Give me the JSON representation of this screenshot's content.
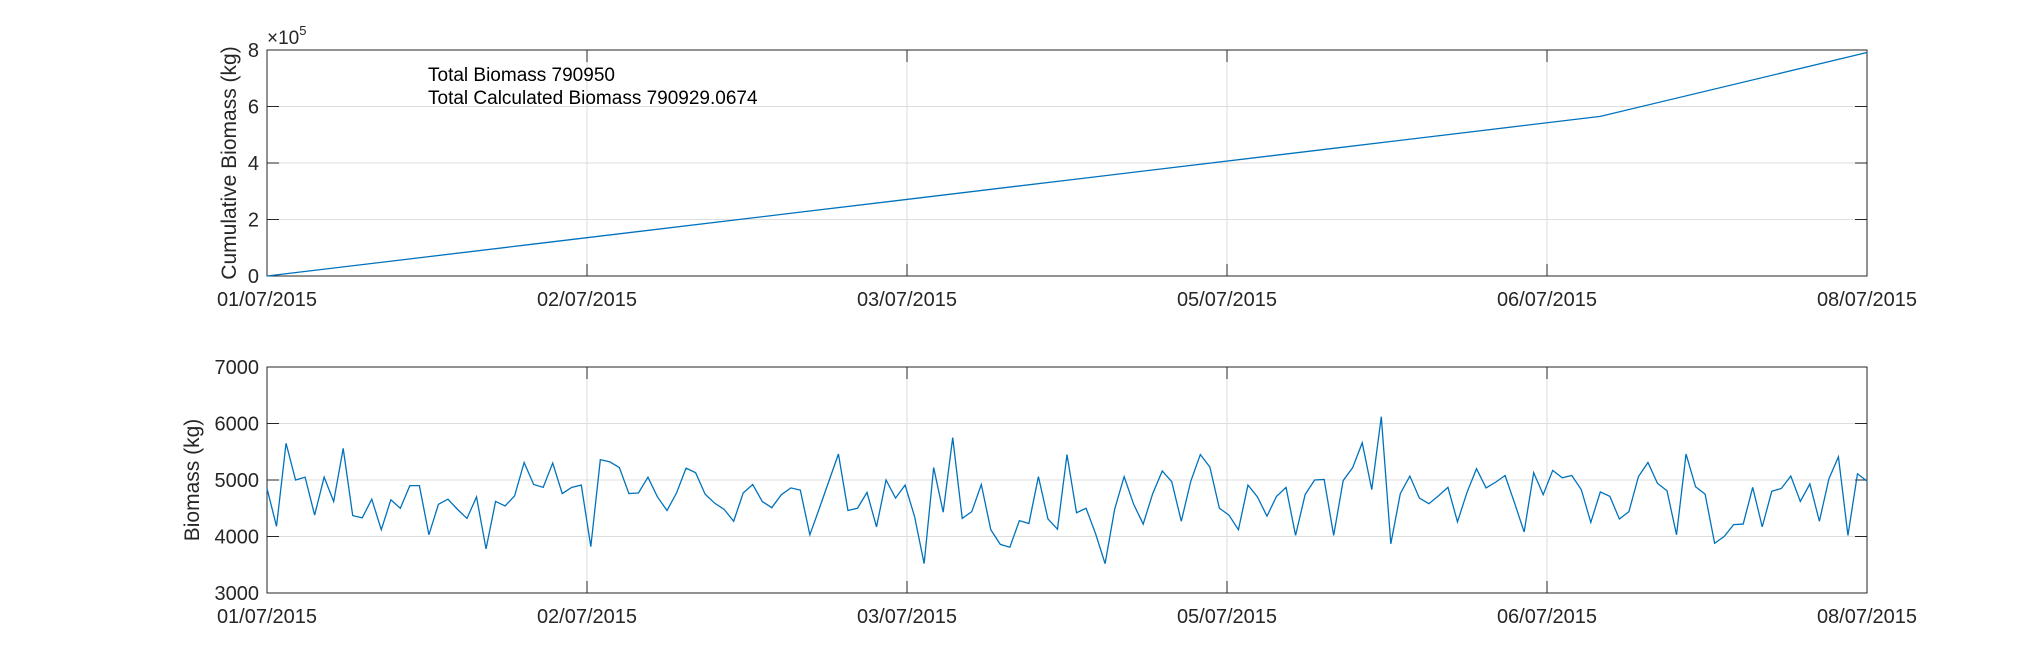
{
  "chart_data": [
    {
      "type": "line",
      "ylabel": "Cumulative Biomass (kg)",
      "exponent_label_base": "×10",
      "exponent_label_power": "5",
      "x_tick_labels": [
        "01/07/2015",
        "02/07/2015",
        "03/07/2015",
        "05/07/2015",
        "06/07/2015",
        "08/07/2015"
      ],
      "xlim": [
        "01/07/2015",
        "08/07/2015"
      ],
      "ylim": [
        0,
        8
      ],
      "y_ticks": [
        0,
        2,
        4,
        6,
        8
      ],
      "y_tick_labels": [
        "0",
        "2",
        "4",
        "6",
        "8"
      ],
      "y_scale_factor": 100000,
      "grid": true,
      "annotations": [
        "Total Biomass 790950",
        "Total Calculated Biomass 790929.0674"
      ],
      "color": "#0072BD",
      "series": [
        {
          "x": [
            0,
            1,
            2,
            3,
            4,
            5,
            6
          ],
          "values": [
            0,
            1.13,
            2.26,
            3.39,
            4.52,
            5.65,
            7.91
          ]
        }
      ]
    },
    {
      "type": "line",
      "ylabel": "Biomass (kg)",
      "x_tick_labels": [
        "01/07/2015",
        "02/07/2015",
        "03/07/2015",
        "05/07/2015",
        "06/07/2015",
        "08/07/2015"
      ],
      "xlim": [
        "01/07/2015",
        "08/07/2015"
      ],
      "ylim": [
        3000,
        7000
      ],
      "y_ticks": [
        3000,
        4000,
        5000,
        6000,
        7000
      ],
      "y_tick_labels": [
        "3000",
        "4000",
        "5000",
        "6000",
        "7000"
      ],
      "grid": true,
      "color": "#0072BD",
      "series": [
        {
          "values": [
            4850,
            4180,
            5650,
            5000,
            5050,
            4380,
            5050,
            4620,
            5560,
            4370,
            4330,
            4660,
            4120,
            4650,
            4500,
            4900,
            4900,
            4030,
            4570,
            4660,
            4480,
            4320,
            4700,
            3780,
            4620,
            4540,
            4720,
            5310,
            4920,
            4870,
            5300,
            4760,
            4870,
            4910,
            3820,
            5360,
            5320,
            5220,
            4760,
            4770,
            5050,
            4700,
            4460,
            4770,
            5210,
            5130,
            4750,
            4590,
            4480,
            4270,
            4770,
            4920,
            4620,
            4510,
            4740,
            4860,
            4820,
            4030,
            4500,
            4980,
            5460,
            4460,
            4500,
            4780,
            4170,
            5000,
            4680,
            4910,
            4350,
            3520,
            5220,
            4430,
            5750,
            4320,
            4440,
            4920,
            4120,
            3860,
            3810,
            4280,
            4230,
            5060,
            4310,
            4130,
            5450,
            4420,
            4500,
            4050,
            3520,
            4480,
            5060,
            4570,
            4220,
            4760,
            5160,
            4970,
            4270,
            4980,
            5450,
            5230,
            4500,
            4380,
            4120,
            4910,
            4700,
            4360,
            4710,
            4870,
            4020,
            4740,
            5000,
            5010,
            4020,
            4990,
            5220,
            5660,
            4830,
            6120,
            3870,
            4760,
            5070,
            4680,
            4580,
            4720,
            4870,
            4260,
            4780,
            5200,
            4860,
            4960,
            5080,
            4590,
            4080,
            5130,
            4740,
            5170,
            5040,
            5080,
            4830,
            4250,
            4790,
            4710,
            4310,
            4440,
            5060,
            5310,
            4940,
            4810,
            4030,
            5460,
            4880,
            4750,
            3880,
            4000,
            4210,
            4220,
            4870,
            4170,
            4800,
            4850,
            5070,
            4620,
            4930,
            4270,
            5020,
            5410,
            4020,
            5110,
            4980
          ]
        }
      ]
    }
  ]
}
